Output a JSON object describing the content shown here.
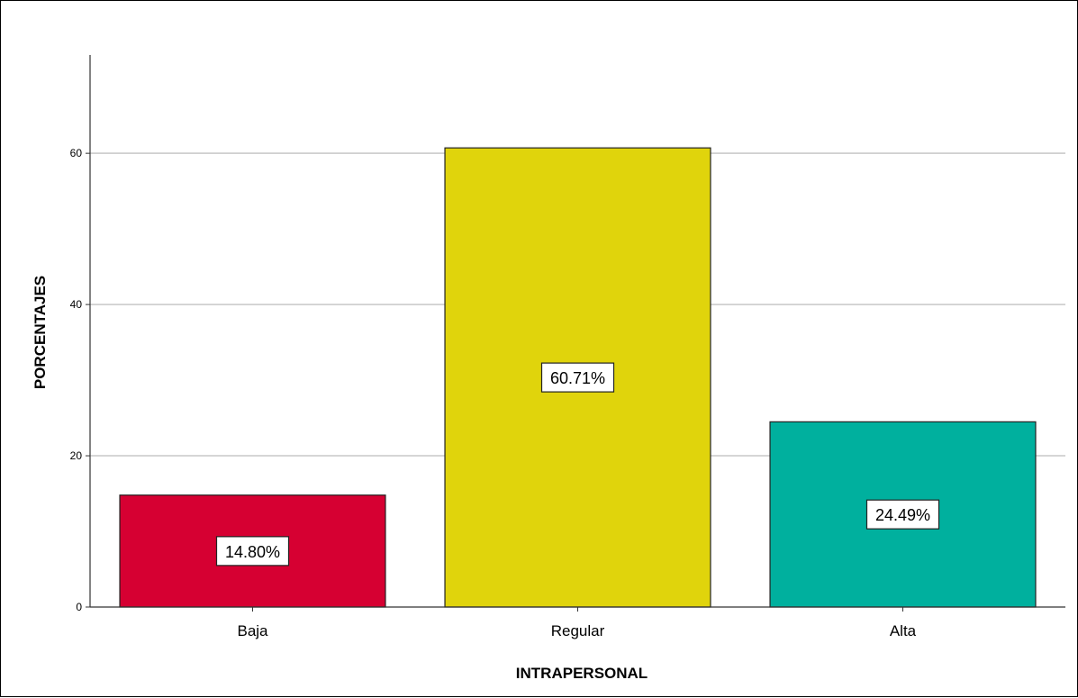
{
  "chart_data": {
    "type": "bar",
    "categories": [
      "Baja",
      "Regular",
      "Alta"
    ],
    "values": [
      14.8,
      60.71,
      24.49
    ],
    "data_labels": [
      "14.80%",
      "60.71%",
      "24.49%"
    ],
    "colors": [
      "#d60032",
      "#e0d40c",
      "#00b09e"
    ],
    "xlabel": "INTRAPERSONAL",
    "ylabel": "PORCENTAJES",
    "ylim": [
      0,
      73
    ],
    "yticks": [
      0,
      20,
      40,
      60
    ],
    "ytick_labels": [
      "0",
      "20",
      "40",
      "60"
    ],
    "grid": true,
    "legend": "none"
  }
}
